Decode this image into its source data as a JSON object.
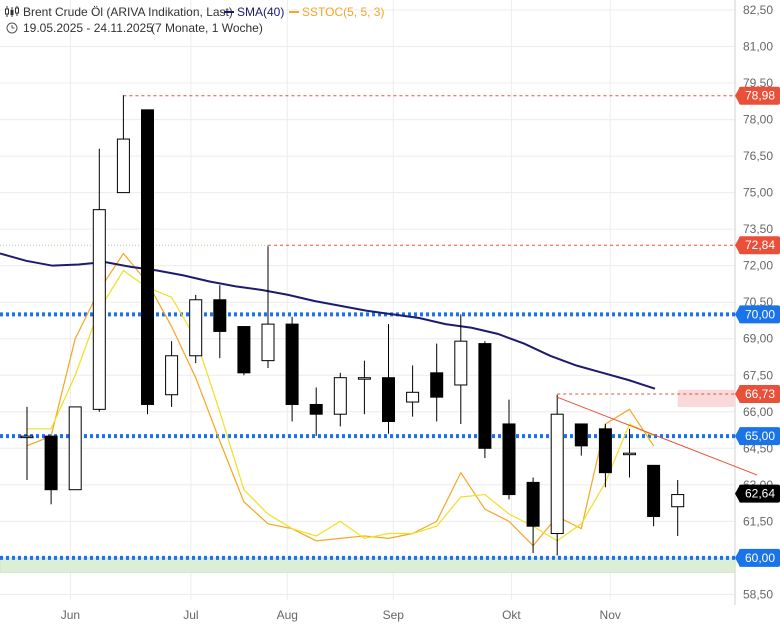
{
  "header": {
    "instrument": "Brent Crude Öl (ARIVA Indikation, Last)",
    "sma_label": "SMA(40)",
    "sstoc_label": "SSTOC(5, 5, 3)",
    "period": "19.05.2025 - 24.11.2025",
    "period_note": "(7 Monate, 1 Woche)"
  },
  "colors": {
    "sma": "#1c1b6e",
    "sstoc_k": "#f5a623",
    "sstoc_d": "#f0e020",
    "support": "#1a73e8",
    "red_label": "#e8503a",
    "black_label": "#000000",
    "blue_label": "#1a73e8"
  },
  "chart_data": {
    "type": "candlestick",
    "y_axis": {
      "min": 57.5,
      "max": 83.0,
      "position": "right",
      "ticks": [
        "82,50",
        "81,00",
        "79,50",
        "78,00",
        "76,50",
        "75,00",
        "73,50",
        "72,00",
        "70,50",
        "69,00",
        "67,50",
        "66,00",
        "64,50",
        "63,00",
        "61,50",
        "60,00",
        "58,50"
      ]
    },
    "x_axis": {
      "ticks": [
        {
          "label": "Jun",
          "week": 1.8
        },
        {
          "label": "Jul",
          "week": 6.8
        },
        {
          "label": "Aug",
          "week": 10.8
        },
        {
          "label": "Sep",
          "week": 15.2
        },
        {
          "label": "Okt",
          "week": 20.1
        },
        {
          "label": "Nov",
          "week": 24.2
        }
      ]
    },
    "candles": [
      {
        "week": 0,
        "open": 65.0,
        "high": 66.2,
        "low": 63.2,
        "close": 65.0
      },
      {
        "week": 1,
        "open": 65.0,
        "high": 65.0,
        "low": 62.2,
        "close": 62.8
      },
      {
        "week": 2,
        "open": 62.8,
        "high": 66.2,
        "low": 62.8,
        "close": 66.2
      },
      {
        "week": 3,
        "open": 66.1,
        "high": 76.8,
        "low": 66.0,
        "close": 74.3
      },
      {
        "week": 4,
        "open": 75.0,
        "high": 79.0,
        "low": 75.0,
        "close": 77.2
      },
      {
        "week": 5,
        "open": 78.4,
        "high": 78.4,
        "low": 65.9,
        "close": 66.3
      },
      {
        "week": 6,
        "open": 66.7,
        "high": 68.9,
        "low": 66.2,
        "close": 68.3
      },
      {
        "week": 7,
        "open": 68.3,
        "high": 70.8,
        "low": 68.0,
        "close": 70.6
      },
      {
        "week": 8,
        "open": 70.6,
        "high": 71.2,
        "low": 68.2,
        "close": 69.3
      },
      {
        "week": 9,
        "open": 69.5,
        "high": 69.5,
        "low": 67.5,
        "close": 67.6
      },
      {
        "week": 10,
        "open": 68.1,
        "high": 72.8,
        "low": 67.8,
        "close": 69.6
      },
      {
        "week": 11,
        "open": 69.6,
        "high": 69.9,
        "low": 65.6,
        "close": 66.3
      },
      {
        "week": 12,
        "open": 66.3,
        "high": 67.0,
        "low": 65.0,
        "close": 65.9
      },
      {
        "week": 13,
        "open": 65.9,
        "high": 67.6,
        "low": 65.4,
        "close": 67.4
      },
      {
        "week": 14,
        "open": 67.4,
        "high": 68.1,
        "low": 65.9,
        "close": 67.4
      },
      {
        "week": 15,
        "open": 67.4,
        "high": 69.6,
        "low": 65.1,
        "close": 65.6
      },
      {
        "week": 16,
        "open": 66.4,
        "high": 67.9,
        "low": 65.8,
        "close": 66.8
      },
      {
        "week": 17,
        "open": 67.6,
        "high": 68.8,
        "low": 65.6,
        "close": 66.6
      },
      {
        "week": 18,
        "open": 67.1,
        "high": 70.0,
        "low": 65.5,
        "close": 68.9
      },
      {
        "week": 19,
        "open": 68.8,
        "high": 68.9,
        "low": 64.1,
        "close": 64.5
      },
      {
        "week": 20,
        "open": 65.5,
        "high": 66.5,
        "low": 62.4,
        "close": 62.6
      },
      {
        "week": 21,
        "open": 63.1,
        "high": 63.3,
        "low": 60.2,
        "close": 61.3
      },
      {
        "week": 22,
        "open": 61.0,
        "high": 66.7,
        "low": 60.1,
        "close": 65.9
      },
      {
        "week": 23,
        "open": 65.5,
        "high": 65.5,
        "low": 64.2,
        "close": 64.6
      },
      {
        "week": 24,
        "open": 65.3,
        "high": 65.5,
        "low": 62.9,
        "close": 63.5
      },
      {
        "week": 25,
        "open": 64.3,
        "high": 65.3,
        "low": 63.3,
        "close": 64.3
      },
      {
        "week": 26,
        "open": 63.8,
        "high": 63.8,
        "low": 61.3,
        "close": 61.7
      },
      {
        "week": 27,
        "open": 62.1,
        "high": 63.2,
        "low": 60.9,
        "close": 62.6
      }
    ],
    "sma": [
      72.5,
      72.2,
      72.0,
      72.05,
      72.15,
      71.95,
      71.8,
      71.6,
      71.35,
      71.15,
      71.0,
      70.8,
      70.55,
      70.35,
      70.15,
      70.0,
      69.85,
      69.6,
      69.45,
      69.2,
      68.8,
      68.3,
      67.9,
      67.6,
      67.3,
      66.95
    ],
    "sstoc_k": [
      64.6,
      65.0,
      69.0,
      71.0,
      72.5,
      71.3,
      69.5,
      67.4,
      64.8,
      62.3,
      61.4,
      61.2,
      60.7,
      60.8,
      60.9,
      60.8,
      61.0,
      61.5,
      63.5,
      62.0,
      61.5,
      60.5,
      61.7,
      61.2,
      65.5,
      66.1,
      64.6
    ],
    "sstoc_d": [
      65.3,
      65.3,
      67.5,
      70.2,
      71.8,
      71.1,
      70.7,
      69.0,
      66.0,
      62.8,
      61.8,
      61.2,
      60.9,
      61.5,
      60.8,
      61.0,
      61.0,
      61.3,
      62.5,
      62.6,
      61.8,
      61.3,
      60.7,
      61.4,
      63.1,
      65.5,
      65.0
    ],
    "sstoc_start_week": 0,
    "support_lines": [
      70.0,
      65.0,
      60.0
    ],
    "resistance_lines": [
      {
        "price": 78.98,
        "label": "78,98",
        "from_week": 4
      },
      {
        "price": 72.84,
        "label": "72,84",
        "from_week": 10
      },
      {
        "price": 66.73,
        "label": "66,73",
        "from_week": 22
      }
    ],
    "trendline": {
      "from": {
        "week": 22,
        "price": 66.6
      },
      "to": {
        "week": 30.3,
        "price": 63.4
      }
    },
    "band": {
      "low": 59.4,
      "high": 60.0
    },
    "pink_band": {
      "low": 66.2,
      "high": 66.9,
      "from_week": 27
    },
    "right_labels": [
      {
        "price": 78.98,
        "text": "78,98",
        "kind": "red"
      },
      {
        "price": 72.84,
        "text": "72,84",
        "kind": "red"
      },
      {
        "price": 70.0,
        "text": "70,00",
        "kind": "blue"
      },
      {
        "price": 66.73,
        "text": "66,73",
        "kind": "red"
      },
      {
        "price": 65.0,
        "text": "65,00",
        "kind": "blue"
      },
      {
        "price": 62.64,
        "text": "62,64",
        "kind": "black"
      },
      {
        "price": 60.0,
        "text": "60,00",
        "kind": "blue"
      }
    ]
  }
}
